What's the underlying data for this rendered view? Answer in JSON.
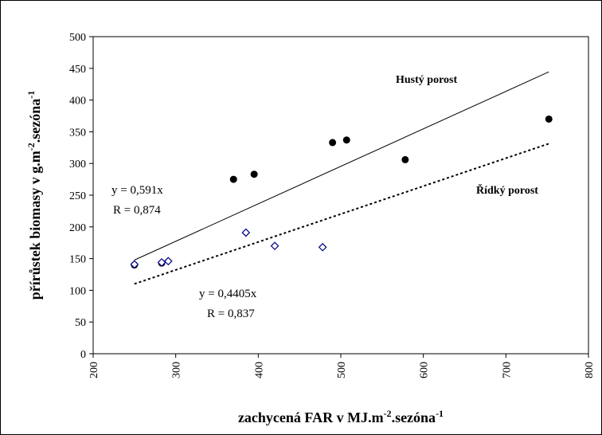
{
  "chart_data": {
    "type": "scatter",
    "xlabel": "zachycená FAR v MJ.m-2.sezóna-1",
    "ylabel": "přírůstek biomasy v g.m-2.sezóna-1",
    "xlim": [
      200,
      800
    ],
    "ylim": [
      0,
      500
    ],
    "x_ticks": [
      "200",
      "300",
      "400",
      "500",
      "600",
      "700",
      "800"
    ],
    "y_ticks": [
      "0",
      "50",
      "100",
      "150",
      "200",
      "250",
      "300",
      "350",
      "400",
      "450",
      "500"
    ],
    "grid": false,
    "series": [
      {
        "name": "Hustý porost",
        "marker": "filled-circle",
        "color": "#000000",
        "points": [
          [
            250,
            140
          ],
          [
            283,
            143
          ],
          [
            370,
            275
          ],
          [
            395,
            283
          ],
          [
            490,
            333
          ],
          [
            507,
            337
          ],
          [
            578,
            306
          ],
          [
            752,
            370
          ]
        ],
        "trendline": {
          "slope": 0.591,
          "x_range": [
            250,
            752
          ],
          "style": "solid"
        },
        "equation": "y = 0,591x",
        "r_value": "R = 0,874"
      },
      {
        "name": "Řídký porost",
        "marker": "open-diamond",
        "color": "#00008B",
        "points": [
          [
            250,
            141
          ],
          [
            283,
            144
          ],
          [
            291,
            146
          ],
          [
            385,
            191
          ],
          [
            420,
            170
          ],
          [
            478,
            168
          ]
        ],
        "trendline": {
          "slope": 0.4405,
          "x_range": [
            250,
            752
          ],
          "style": "dotted"
        },
        "equation": "y = 0,4405x",
        "r_value": "R = 0,837"
      }
    ]
  }
}
